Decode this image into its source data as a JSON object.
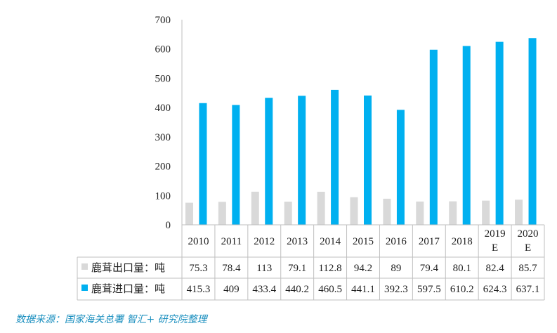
{
  "chart_data": {
    "type": "bar",
    "categories": [
      "2010",
      "2011",
      "2012",
      "2013",
      "2014",
      "2015",
      "2016",
      "2017",
      "2018",
      "2019\nE",
      "2020\nE"
    ],
    "series": [
      {
        "name": "鹿茸出口量：吨",
        "values": [
          75.3,
          78.4,
          113,
          79.1,
          112.8,
          94.2,
          89,
          79.4,
          80.1,
          82.4,
          85.7
        ],
        "labels": [
          "75.3",
          "78.4",
          "113",
          "79.1",
          "112.8",
          "94.2",
          "89",
          "79.4",
          "80.1",
          "82.4",
          "85.7"
        ],
        "color": "#d9d9d9"
      },
      {
        "name": "鹿茸进口量：吨",
        "values": [
          415.3,
          409,
          433.4,
          440.2,
          460.5,
          441.1,
          392.3,
          597.5,
          610.2,
          624.3,
          637.1
        ],
        "labels": [
          "415.3",
          "409",
          "433.4",
          "440.2",
          "460.5",
          "441.1",
          "392.3",
          "597.5",
          "610.2",
          "624.3",
          "637.1"
        ],
        "color": "#00b0f0"
      }
    ],
    "ylim": [
      0,
      700
    ],
    "yticks": [
      "0",
      "100",
      "200",
      "300",
      "400",
      "500",
      "600",
      "700"
    ],
    "legend": "data-table-left",
    "grid": false
  },
  "source_note": "数据来源：国家海关总署 智汇+ 研究院整理"
}
